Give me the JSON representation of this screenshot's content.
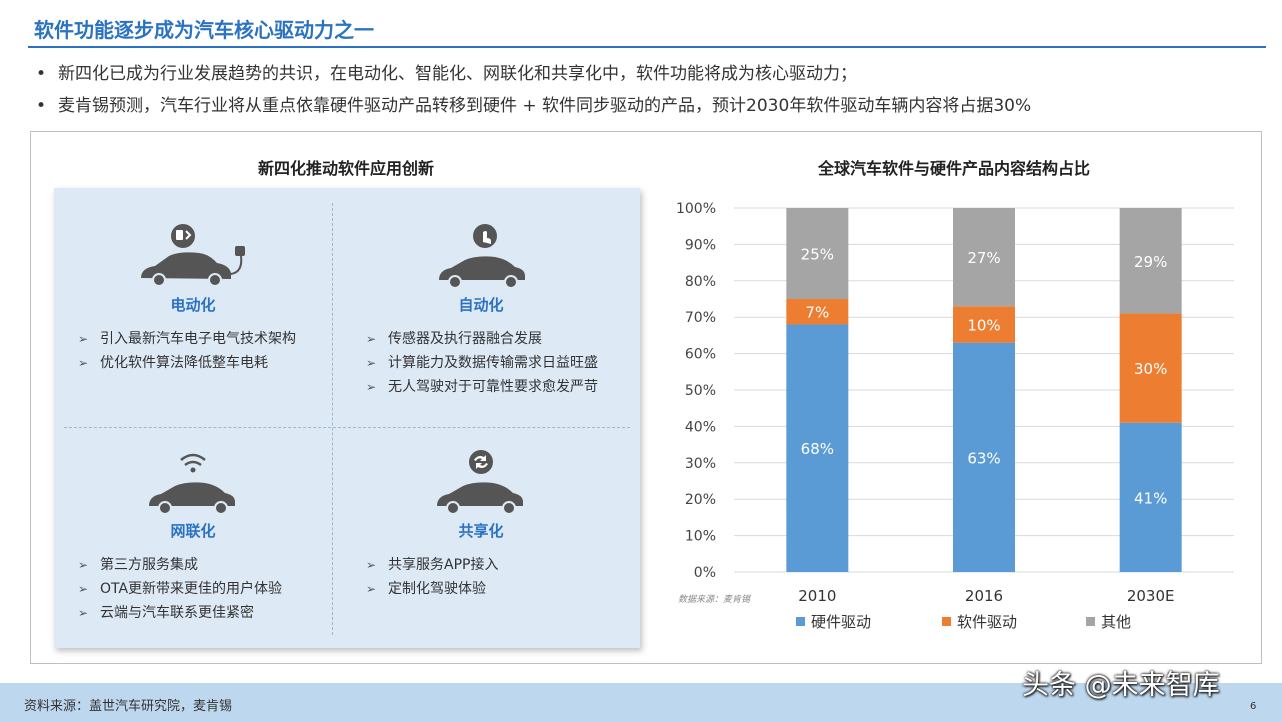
{
  "slide": {
    "title": "软件功能逐步成为汽车核心驱动力之一",
    "bullets": [
      "新四化已成为行业发展趋势的共识，在电动化、智能化、网联化和共享化中，软件功能将成为核心驱动力；",
      "麦肯锡预测，汽车行业将从重点依靠硬件驱动产品转移到硬件 + 软件同步驱动的产品，预计2030年软件驱动车辆内容将占据30%"
    ],
    "bullet_symbol": "•",
    "left_panel_title": "新四化推动软件应用创新",
    "quadrants": [
      {
        "label": "电动化",
        "icon": "ev-charging-car-icon",
        "items": [
          "引入最新汽车电子电气技术架构",
          "优化软件算法降低整车电耗"
        ]
      },
      {
        "label": "自动化",
        "icon": "autonomous-car-icon",
        "items": [
          "传感器及执行器融合发展",
          "计算能力及数据传输需求日益旺盛",
          "无人驾驶对于可靠性要求愈发严苛"
        ]
      },
      {
        "label": "网联化",
        "icon": "connected-car-icon",
        "items": [
          "第三方服务集成",
          "OTA更新带来更佳的用户体验",
          "云端与汽车联系更佳紧密"
        ]
      },
      {
        "label": "共享化",
        "icon": "shared-car-icon",
        "items": [
          "共享服务APP接入",
          "定制化驾驶体验"
        ]
      }
    ],
    "item_arrow": "➢",
    "footer_source": "资料来源：盖世汽车研究院，麦肯锡",
    "page_number": "6",
    "watermark": "头条 @未来智库"
  },
  "chart_data": {
    "type": "bar",
    "stacked": true,
    "percent": true,
    "title": "全球汽车软件与硬件产品内容结构占比",
    "categories": [
      "2010",
      "2016",
      "2030E"
    ],
    "series": [
      {
        "name": "硬件驱动",
        "values": [
          68,
          63,
          41
        ],
        "color": "#5b9bd5",
        "labels": [
          "68%",
          "63%",
          "41%"
        ]
      },
      {
        "name": "软件驱动",
        "values": [
          7,
          10,
          30
        ],
        "color": "#ed7d31",
        "labels": [
          "7%",
          "10%",
          "30%"
        ]
      },
      {
        "name": "其他",
        "values": [
          25,
          27,
          29
        ],
        "color": "#a5a5a5",
        "labels": [
          "25%",
          "27%",
          "29%"
        ]
      }
    ],
    "ylim": [
      0,
      100
    ],
    "yticks": [
      "0%",
      "10%",
      "20%",
      "30%",
      "40%",
      "50%",
      "60%",
      "70%",
      "80%",
      "90%",
      "100%"
    ],
    "grid": true,
    "legend_position": "bottom",
    "source_note": "数据来源：麦肯锡"
  }
}
